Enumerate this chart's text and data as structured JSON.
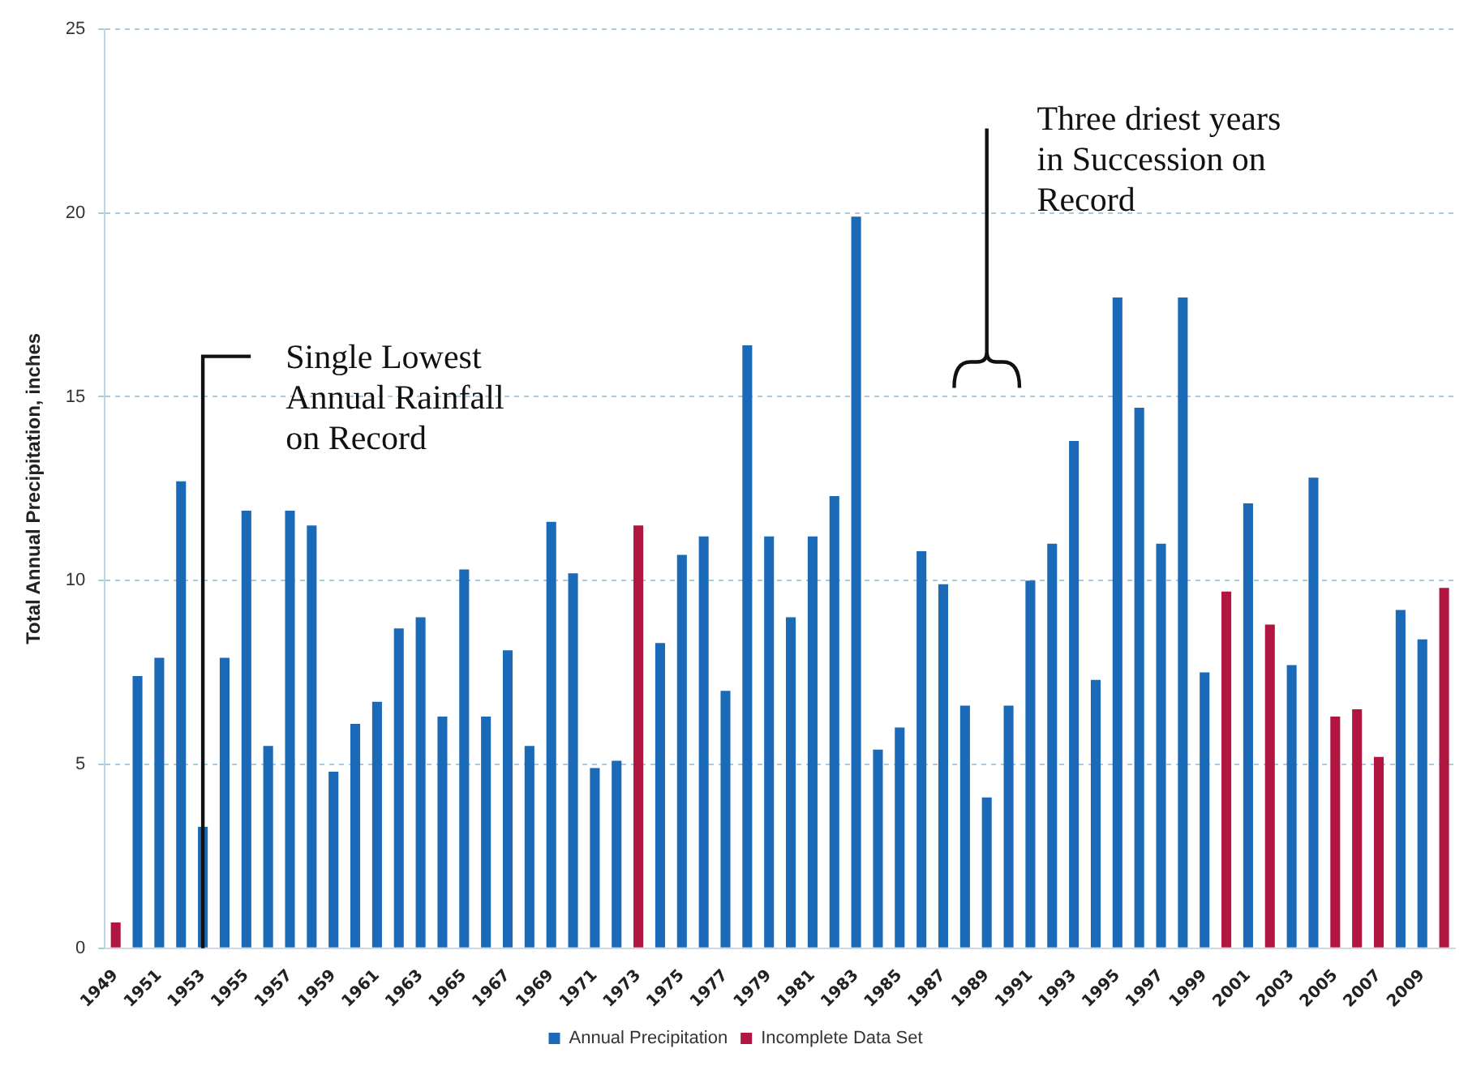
{
  "chart_data": {
    "type": "bar",
    "ylabel": "Total Annual Precipitation, inches",
    "categories": [
      "1949",
      null,
      "1951",
      null,
      "1953",
      null,
      "1955",
      null,
      "1957",
      null,
      "1959",
      null,
      "1961",
      null,
      "1963",
      null,
      "1965",
      null,
      "1967",
      null,
      "1969",
      null,
      "1971",
      null,
      "1973",
      null,
      "1975",
      null,
      "1977",
      null,
      "1979",
      null,
      "1981",
      null,
      "1983",
      null,
      "1985",
      null,
      "1987",
      null,
      "1989",
      null,
      "1991",
      null,
      "1993",
      null,
      "1995",
      null,
      "1997",
      null,
      "1999",
      null,
      "2001",
      null,
      "2003",
      null,
      "2005",
      null,
      "2007",
      null,
      "2009",
      null
    ],
    "series": [
      {
        "name": "Annual Precipitation",
        "color": "#1b6ab8",
        "values": [
          null,
          7.4,
          7.9,
          12.7,
          3.3,
          7.9,
          11.9,
          5.5,
          11.9,
          11.5,
          4.8,
          6.1,
          6.7,
          8.7,
          9.0,
          6.3,
          10.3,
          6.3,
          8.1,
          5.5,
          11.6,
          10.2,
          4.9,
          5.1,
          null,
          8.3,
          10.7,
          11.2,
          7.0,
          16.4,
          11.2,
          9.0,
          11.2,
          12.3,
          19.9,
          5.4,
          6.0,
          10.8,
          9.9,
          6.6,
          4.1,
          6.6,
          10.0,
          11.0,
          13.8,
          7.3,
          17.7,
          14.7,
          11.0,
          17.7,
          7.5,
          null,
          12.1,
          null,
          7.7,
          12.8,
          null,
          null,
          null,
          9.2,
          8.4,
          null
        ]
      },
      {
        "name": "Incomplete Data Set",
        "color": "#b0163f",
        "values": [
          0.7,
          null,
          null,
          null,
          null,
          null,
          null,
          null,
          null,
          null,
          null,
          null,
          null,
          null,
          null,
          null,
          null,
          null,
          null,
          null,
          null,
          null,
          null,
          null,
          11.5,
          null,
          null,
          null,
          null,
          null,
          null,
          null,
          null,
          null,
          null,
          null,
          null,
          null,
          null,
          null,
          null,
          null,
          null,
          null,
          null,
          null,
          null,
          null,
          null,
          null,
          null,
          9.7,
          null,
          8.8,
          null,
          null,
          6.3,
          6.5,
          5.2,
          null,
          null,
          9.8
        ]
      }
    ],
    "ylim": [
      0,
      25
    ],
    "yticks": [
      0,
      5,
      10,
      15,
      20,
      25
    ],
    "grid": "y",
    "legend": "bottom",
    "annotations": [
      "Single Lowest Annual Rainfall on Record",
      "Three driest years in Succession on Record"
    ]
  }
}
